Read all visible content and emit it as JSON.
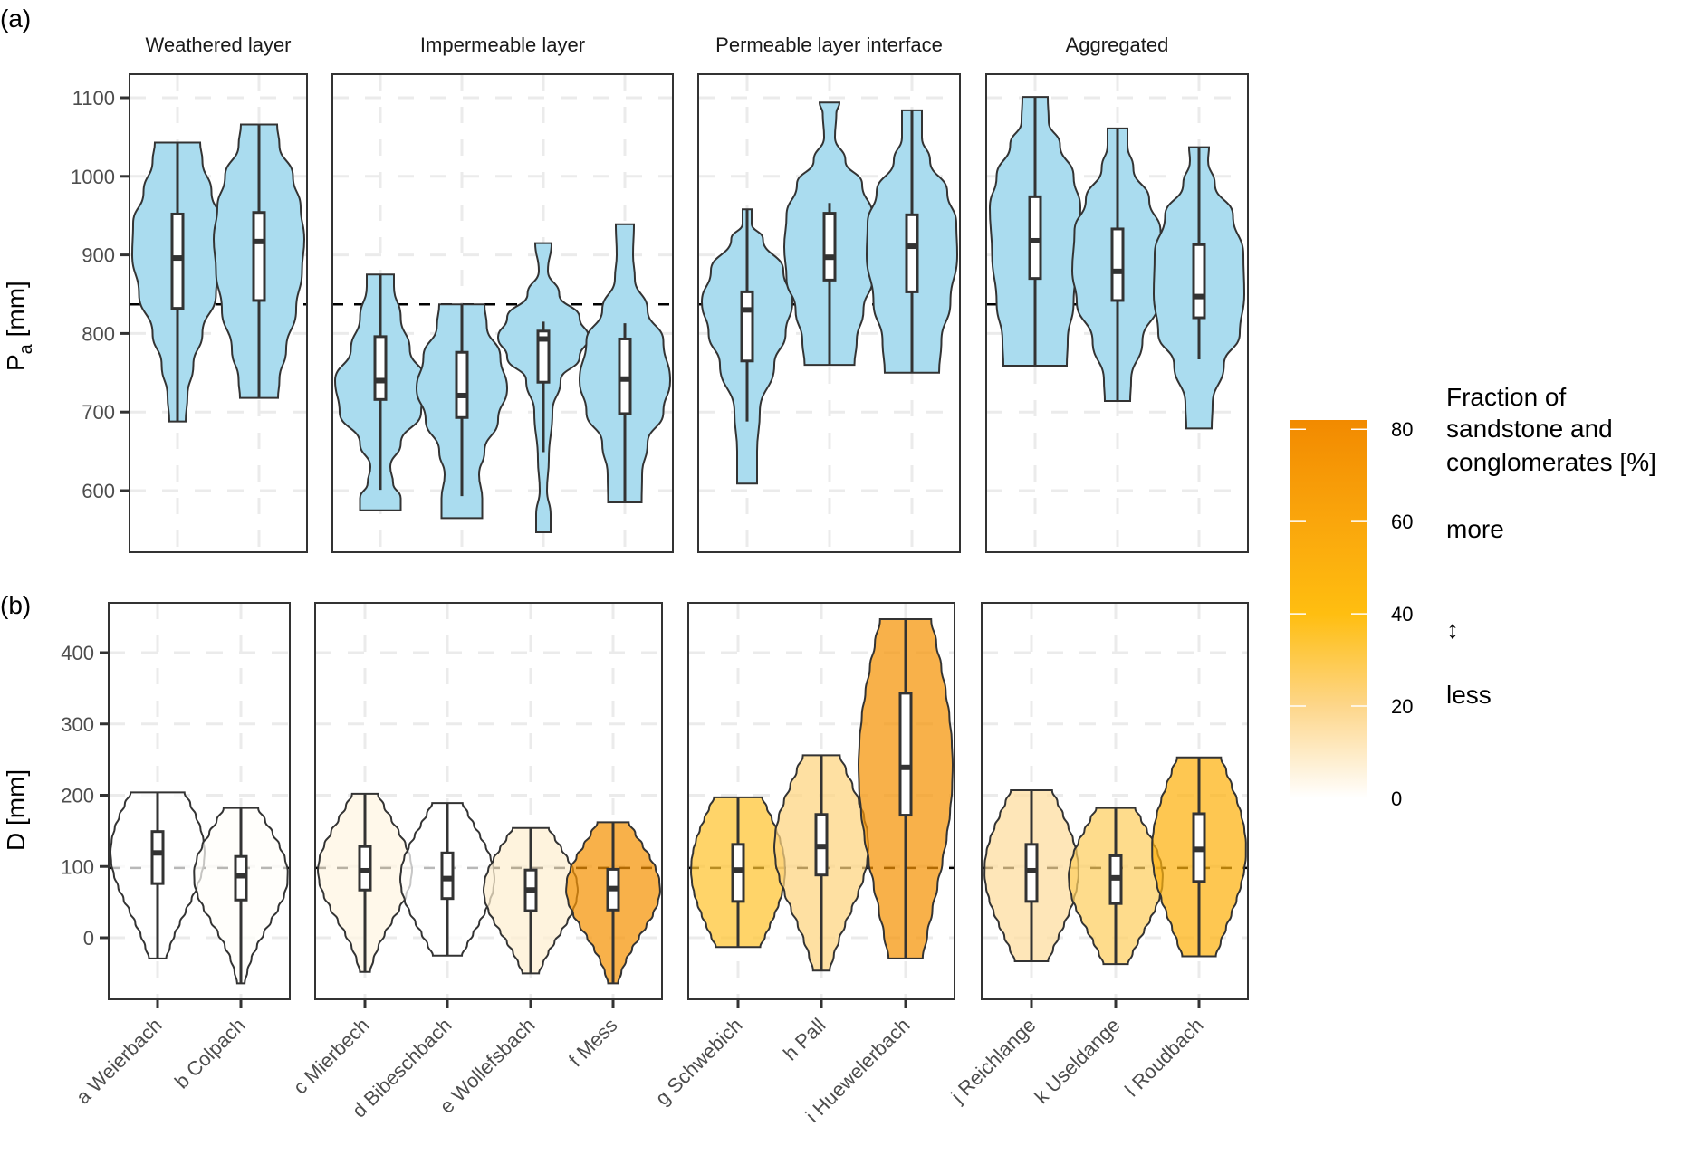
{
  "chart_data": {
    "type": "violin",
    "panel_tags": [
      "(a)",
      "(b)"
    ],
    "facets": [
      "Weathered layer",
      "Impermeable layer",
      "Permeable layer interface",
      "Aggregated"
    ],
    "categories": [
      "a Weierbach",
      "b Colpach",
      "c Mierbech",
      "d Bibeschbach",
      "e Wollefsbach",
      "f Mess",
      "g Schwebich",
      "h Pall",
      "i Huewelerbach",
      "j Reichlange",
      "k Useldange",
      "l Roudbach"
    ],
    "facet_of_category": [
      0,
      0,
      1,
      1,
      1,
      1,
      2,
      2,
      2,
      3,
      3,
      3
    ],
    "sandstone_fraction_pct": [
      0,
      1,
      5,
      0,
      8,
      75,
      35,
      22,
      75,
      17,
      27,
      50
    ],
    "panels": [
      {
        "id": "a",
        "ylabel": "P",
        "ylabel_sub": "a",
        "ylabel_unit": " [mm]",
        "ylim": [
          522,
          1130
        ],
        "yticks": [
          600,
          700,
          800,
          900,
          1000,
          1100
        ],
        "reference_line": 837,
        "fill": "#aadcef",
        "series": [
          {
            "min": 688,
            "q1": 832,
            "median": 896,
            "q3": 952,
            "max": 1043,
            "wlo": 688,
            "whi": 1043,
            "profile": [
              [
                688,
                0.18
              ],
              [
                720,
                0.22
              ],
              [
                760,
                0.35
              ],
              [
                800,
                0.55
              ],
              [
                850,
                0.85
              ],
              [
                900,
                1.0
              ],
              [
                940,
                0.98
              ],
              [
                980,
                0.75
              ],
              [
                1020,
                0.55
              ],
              [
                1043,
                0.5
              ]
            ]
          },
          {
            "min": 718,
            "q1": 842,
            "median": 917,
            "q3": 954,
            "max": 1066,
            "wlo": 718,
            "whi": 1066,
            "profile": [
              [
                718,
                0.42
              ],
              [
                740,
                0.45
              ],
              [
                780,
                0.6
              ],
              [
                830,
                0.82
              ],
              [
                880,
                0.95
              ],
              [
                920,
                1.0
              ],
              [
                960,
                0.92
              ],
              [
                1000,
                0.75
              ],
              [
                1040,
                0.45
              ],
              [
                1066,
                0.4
              ]
            ]
          }
        ]
      },
      {
        "id": "b",
        "ylabel": "D [mm]",
        "ylim": [
          -72,
          462
        ],
        "yticks": [
          0,
          100,
          200,
          300,
          400
        ],
        "reference_line": 98,
        "series": [
          {
            "min": -29,
            "q1": 76,
            "median": 119,
            "q3": 149,
            "max": 204,
            "wlo": -29,
            "whi": 204
          },
          {
            "min": -64,
            "q1": 53,
            "median": 87,
            "q3": 114,
            "max": 182,
            "wlo": -64,
            "whi": 182
          },
          {
            "min": -48,
            "q1": 67,
            "median": 94,
            "q3": 128,
            "max": 202,
            "wlo": -48,
            "whi": 202
          },
          {
            "min": -25,
            "q1": 55,
            "median": 83,
            "q3": 119,
            "max": 189,
            "wlo": -25,
            "whi": 189
          },
          {
            "min": -50,
            "q1": 38,
            "median": 67,
            "q3": 95,
            "max": 154,
            "wlo": -50,
            "whi": 154
          },
          {
            "min": -64,
            "q1": 39,
            "median": 69,
            "q3": 96,
            "max": 162,
            "wlo": -64,
            "whi": 162
          },
          {
            "min": -13,
            "q1": 51,
            "median": 95,
            "q3": 131,
            "max": 197,
            "wlo": -13,
            "whi": 197
          },
          {
            "min": -46,
            "q1": 88,
            "median": 128,
            "q3": 173,
            "max": 256,
            "wlo": -46,
            "whi": 256
          },
          {
            "min": -29,
            "q1": 172,
            "median": 239,
            "q3": 343,
            "max": 447,
            "wlo": -29,
            "whi": 447
          },
          {
            "min": -33,
            "q1": 51,
            "median": 94,
            "q3": 131,
            "max": 207,
            "wlo": -33,
            "whi": 207
          },
          {
            "min": -37,
            "q1": 48,
            "median": 84,
            "q3": 115,
            "max": 182,
            "wlo": -37,
            "whi": 182
          },
          {
            "min": -26,
            "q1": 79,
            "median": 124,
            "q3": 174,
            "max": 253,
            "wlo": -26,
            "whi": 253
          }
        ]
      }
    ],
    "top_series_rest": [
      {
        "min": 575,
        "q1": 716,
        "median": 740,
        "q3": 796,
        "max": 875,
        "wlo": 601,
        "whi": 875,
        "profile": [
          [
            575,
            0.45
          ],
          [
            590,
            0.45
          ],
          [
            610,
            0.28
          ],
          [
            630,
            0.22
          ],
          [
            660,
            0.45
          ],
          [
            700,
            0.9
          ],
          [
            740,
            1.0
          ],
          [
            780,
            0.65
          ],
          [
            820,
            0.45
          ],
          [
            860,
            0.3
          ],
          [
            875,
            0.3
          ]
        ]
      },
      {
        "min": 565,
        "q1": 693,
        "median": 721,
        "q3": 776,
        "max": 837,
        "wlo": 593,
        "whi": 837,
        "profile": [
          [
            565,
            0.45
          ],
          [
            590,
            0.45
          ],
          [
            620,
            0.38
          ],
          [
            650,
            0.5
          ],
          [
            690,
            0.8
          ],
          [
            730,
            1.0
          ],
          [
            770,
            0.85
          ],
          [
            810,
            0.55
          ],
          [
            837,
            0.5
          ]
        ]
      },
      {
        "min": 547,
        "q1": 738,
        "median": 793,
        "q3": 803,
        "max": 915,
        "wlo": 649,
        "whi": 815,
        "profile": [
          [
            547,
            0.16
          ],
          [
            570,
            0.16
          ],
          [
            600,
            0.08
          ],
          [
            640,
            0.12
          ],
          [
            700,
            0.2
          ],
          [
            740,
            0.38
          ],
          [
            770,
            0.8
          ],
          [
            795,
            1.0
          ],
          [
            820,
            0.8
          ],
          [
            850,
            0.35
          ],
          [
            880,
            0.1
          ],
          [
            915,
            0.18
          ]
        ]
      },
      {
        "min": 585,
        "q1": 698,
        "median": 742,
        "q3": 793,
        "max": 939,
        "wlo": 585,
        "whi": 813,
        "profile": [
          [
            585,
            0.37
          ],
          [
            620,
            0.38
          ],
          [
            660,
            0.5
          ],
          [
            700,
            0.85
          ],
          [
            740,
            1.0
          ],
          [
            790,
            0.85
          ],
          [
            830,
            0.5
          ],
          [
            870,
            0.22
          ],
          [
            900,
            0.18
          ],
          [
            939,
            0.2
          ]
        ]
      },
      {
        "min": 609,
        "q1": 765,
        "median": 830,
        "q3": 853,
        "max": 958,
        "wlo": 688,
        "whi": 958,
        "profile": [
          [
            609,
            0.22
          ],
          [
            650,
            0.22
          ],
          [
            700,
            0.28
          ],
          [
            760,
            0.6
          ],
          [
            800,
            0.85
          ],
          [
            840,
            1.0
          ],
          [
            880,
            0.8
          ],
          [
            920,
            0.35
          ],
          [
            940,
            0.1
          ],
          [
            958,
            0.1
          ]
        ]
      },
      {
        "min": 760,
        "q1": 868,
        "median": 897,
        "q3": 953,
        "max": 1094,
        "wlo": 760,
        "whi": 966,
        "profile": [
          [
            760,
            0.55
          ],
          [
            790,
            0.6
          ],
          [
            830,
            0.75
          ],
          [
            870,
            0.95
          ],
          [
            910,
            1.0
          ],
          [
            950,
            0.95
          ],
          [
            990,
            0.72
          ],
          [
            1020,
            0.35
          ],
          [
            1050,
            0.12
          ],
          [
            1080,
            0.15
          ],
          [
            1094,
            0.22
          ]
        ]
      },
      {
        "min": 750,
        "q1": 853,
        "median": 911,
        "q3": 951,
        "max": 1084,
        "wlo": 750,
        "whi": 1084,
        "profile": [
          [
            750,
            0.6
          ],
          [
            790,
            0.65
          ],
          [
            840,
            0.85
          ],
          [
            900,
            1.0
          ],
          [
            940,
            0.98
          ],
          [
            980,
            0.78
          ],
          [
            1020,
            0.4
          ],
          [
            1050,
            0.22
          ],
          [
            1084,
            0.22
          ]
        ]
      },
      {
        "min": 759,
        "q1": 870,
        "median": 918,
        "q3": 974,
        "max": 1101,
        "wlo": 759,
        "whi": 1101,
        "profile": [
          [
            759,
            0.7
          ],
          [
            790,
            0.72
          ],
          [
            840,
            0.85
          ],
          [
            900,
            0.95
          ],
          [
            960,
            1.0
          ],
          [
            1000,
            0.85
          ],
          [
            1040,
            0.55
          ],
          [
            1070,
            0.3
          ],
          [
            1101,
            0.28
          ]
        ]
      },
      {
        "min": 714,
        "q1": 842,
        "median": 879,
        "q3": 933,
        "max": 1061,
        "wlo": 714,
        "whi": 1061,
        "profile": [
          [
            714,
            0.28
          ],
          [
            740,
            0.3
          ],
          [
            790,
            0.55
          ],
          [
            840,
            0.9
          ],
          [
            880,
            1.0
          ],
          [
            930,
            0.95
          ],
          [
            970,
            0.7
          ],
          [
            1010,
            0.35
          ],
          [
            1040,
            0.22
          ],
          [
            1061,
            0.22
          ]
        ]
      },
      {
        "min": 679,
        "q1": 820,
        "median": 847,
        "q3": 913,
        "max": 1037,
        "wlo": 767,
        "whi": 1037,
        "profile": [
          [
            679,
            0.28
          ],
          [
            710,
            0.3
          ],
          [
            760,
            0.55
          ],
          [
            800,
            0.9
          ],
          [
            850,
            1.0
          ],
          [
            900,
            0.98
          ],
          [
            950,
            0.75
          ],
          [
            990,
            0.35
          ],
          [
            1020,
            0.2
          ],
          [
            1037,
            0.22
          ]
        ]
      }
    ],
    "legend": {
      "title_lines": [
        "Fraction of",
        "sandstone and",
        "conglomerates [%]"
      ],
      "more": "more",
      "arrow": "↕",
      "less": "less",
      "ticks": [
        0,
        20,
        40,
        60,
        80
      ],
      "range": [
        0,
        82
      ],
      "colors": [
        [
          0,
          "#ffffff"
        ],
        [
          20,
          "#fdd68a"
        ],
        [
          40,
          "#ffbe10"
        ],
        [
          60,
          "#faa60c"
        ],
        [
          82,
          "#f28a00"
        ]
      ]
    }
  }
}
